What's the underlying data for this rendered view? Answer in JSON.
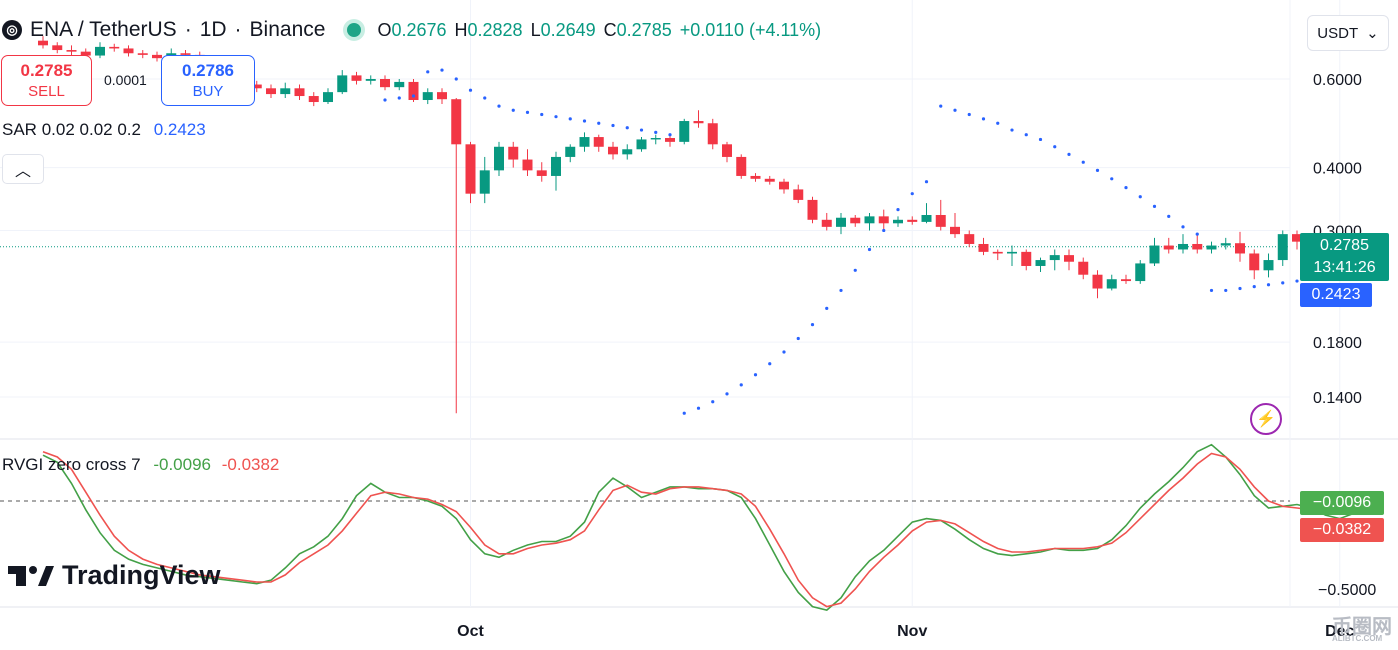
{
  "header": {
    "symbol_icon": "dollar-coin-icon",
    "pair": "ENA / TetherUS",
    "timeframe": "1D",
    "exchange": "Binance",
    "ohlc": {
      "o_label": "O",
      "o": "0.2676",
      "h_label": "H",
      "h": "0.2828",
      "l_label": "L",
      "l": "0.2649",
      "c_label": "C",
      "c": "0.2785",
      "change": "+0.0110 (+4.11%)"
    }
  },
  "trade": {
    "sell_price": "0.2785",
    "sell_label": "SELL",
    "spread": "0.0001",
    "buy_price": "0.2786",
    "buy_label": "BUY"
  },
  "sar_legend": {
    "name": "SAR",
    "params": "0.02 0.02 0.2",
    "value": "0.2423"
  },
  "currency": {
    "label": "USDT",
    "icon": "chevron-down-icon"
  },
  "indicator_legend": {
    "name": "RVGI zero cross",
    "length": "7",
    "value_a": "-0.0096",
    "value_b": "-0.0382"
  },
  "badges": {
    "price": "0.2785",
    "countdown": "13:41:26",
    "sar": "0.2423",
    "rvgi_a": "−0.0096",
    "rvgi_b": "−0.0382"
  },
  "brand": "TradingView",
  "watermark": "币圈网",
  "watermark_sub": "ALIBTC.COM",
  "colors": {
    "up": "#089981",
    "down": "#f23645",
    "sar": "#2962ff",
    "rvgi_a": "#43a047",
    "rvgi_b": "#ef5350",
    "countdown_bg": "#089981"
  },
  "chart_data": [
    {
      "type": "candlestick",
      "price_axis": {
        "scale": "log",
        "ticks": [
          "0.6000",
          "0.4000",
          "0.3000",
          "0.1800",
          "0.1400"
        ],
        "tick_values": [
          0.6,
          0.4,
          0.3,
          0.18,
          0.14
        ]
      },
      "time_axis": {
        "labels": [
          "Oct",
          "Nov",
          "Dec"
        ],
        "label_dates": [
          "2024-10-01",
          "2024-11-01",
          "2024-12-01"
        ]
      },
      "first_date": "2024-09-01",
      "candles": [
        [
          0.715,
          0.7,
          0.73,
          0.69
        ],
        [
          0.7,
          0.685,
          0.71,
          0.675
        ],
        [
          0.685,
          0.68,
          0.7,
          0.665
        ],
        [
          0.68,
          0.668,
          0.69,
          0.655
        ],
        [
          0.668,
          0.695,
          0.71,
          0.66
        ],
        [
          0.695,
          0.69,
          0.705,
          0.68
        ],
        [
          0.69,
          0.675,
          0.7,
          0.665
        ],
        [
          0.675,
          0.67,
          0.685,
          0.66
        ],
        [
          0.67,
          0.66,
          0.68,
          0.65
        ],
        [
          0.66,
          0.675,
          0.69,
          0.655
        ],
        [
          0.675,
          0.67,
          0.685,
          0.66
        ],
        [
          0.67,
          0.655,
          0.68,
          0.645
        ],
        [
          0.655,
          0.62,
          0.66,
          0.61
        ],
        [
          0.62,
          0.6,
          0.625,
          0.59
        ],
        [
          0.6,
          0.585,
          0.61,
          0.575
        ],
        [
          0.585,
          0.575,
          0.595,
          0.565
        ],
        [
          0.575,
          0.56,
          0.585,
          0.55
        ],
        [
          0.56,
          0.575,
          0.59,
          0.55
        ],
        [
          0.575,
          0.555,
          0.585,
          0.545
        ],
        [
          0.555,
          0.54,
          0.565,
          0.53
        ],
        [
          0.54,
          0.565,
          0.575,
          0.535
        ],
        [
          0.565,
          0.61,
          0.625,
          0.56
        ],
        [
          0.61,
          0.595,
          0.62,
          0.585
        ],
        [
          0.595,
          0.6,
          0.61,
          0.585
        ],
        [
          0.6,
          0.578,
          0.61,
          0.57
        ],
        [
          0.578,
          0.592,
          0.6,
          0.57
        ],
        [
          0.592,
          0.545,
          0.6,
          0.54
        ],
        [
          0.545,
          0.565,
          0.575,
          0.535
        ],
        [
          0.565,
          0.547,
          0.575,
          0.535
        ],
        [
          0.547,
          0.445,
          0.55,
          0.13
        ],
        [
          0.445,
          0.355,
          0.45,
          0.34
        ],
        [
          0.355,
          0.395,
          0.42,
          0.34
        ],
        [
          0.395,
          0.44,
          0.45,
          0.385
        ],
        [
          0.44,
          0.415,
          0.45,
          0.4
        ],
        [
          0.415,
          0.395,
          0.435,
          0.385
        ],
        [
          0.395,
          0.385,
          0.41,
          0.375
        ],
        [
          0.385,
          0.42,
          0.43,
          0.36
        ],
        [
          0.42,
          0.44,
          0.445,
          0.41
        ],
        [
          0.44,
          0.46,
          0.47,
          0.43
        ],
        [
          0.46,
          0.44,
          0.465,
          0.43
        ],
        [
          0.44,
          0.425,
          0.45,
          0.415
        ],
        [
          0.425,
          0.435,
          0.445,
          0.415
        ],
        [
          0.435,
          0.455,
          0.46,
          0.43
        ],
        [
          0.455,
          0.458,
          0.465,
          0.445
        ],
        [
          0.458,
          0.45,
          0.465,
          0.44
        ],
        [
          0.45,
          0.495,
          0.5,
          0.445
        ],
        [
          0.495,
          0.49,
          0.52,
          0.48
        ],
        [
          0.49,
          0.445,
          0.5,
          0.435
        ],
        [
          0.445,
          0.42,
          0.45,
          0.41
        ],
        [
          0.42,
          0.385,
          0.425,
          0.38
        ],
        [
          0.385,
          0.38,
          0.39,
          0.375
        ],
        [
          0.38,
          0.375,
          0.385,
          0.37
        ],
        [
          0.375,
          0.362,
          0.38,
          0.355
        ],
        [
          0.362,
          0.345,
          0.37,
          0.34
        ],
        [
          0.345,
          0.315,
          0.35,
          0.31
        ],
        [
          0.315,
          0.305,
          0.325,
          0.3
        ],
        [
          0.305,
          0.318,
          0.325,
          0.295
        ],
        [
          0.318,
          0.31,
          0.322,
          0.305
        ],
        [
          0.31,
          0.32,
          0.325,
          0.3
        ],
        [
          0.32,
          0.31,
          0.33,
          0.3
        ],
        [
          0.31,
          0.315,
          0.32,
          0.305
        ],
        [
          0.315,
          0.312,
          0.32,
          0.308
        ],
        [
          0.312,
          0.322,
          0.34,
          0.31
        ],
        [
          0.322,
          0.305,
          0.345,
          0.3
        ],
        [
          0.305,
          0.295,
          0.325,
          0.29
        ],
        [
          0.295,
          0.282,
          0.3,
          0.278
        ],
        [
          0.282,
          0.272,
          0.29,
          0.268
        ],
        [
          0.272,
          0.27,
          0.275,
          0.262
        ],
        [
          0.27,
          0.272,
          0.28,
          0.255
        ],
        [
          0.272,
          0.255,
          0.275,
          0.25
        ],
        [
          0.255,
          0.262,
          0.265,
          0.248
        ],
        [
          0.262,
          0.268,
          0.275,
          0.25
        ],
        [
          0.268,
          0.26,
          0.275,
          0.25
        ],
        [
          0.26,
          0.245,
          0.265,
          0.24
        ],
        [
          0.245,
          0.23,
          0.25,
          0.22
        ],
        [
          0.23,
          0.24,
          0.245,
          0.228
        ],
        [
          0.24,
          0.238,
          0.245,
          0.235
        ],
        [
          0.238,
          0.258,
          0.262,
          0.235
        ],
        [
          0.258,
          0.28,
          0.29,
          0.255
        ],
        [
          0.28,
          0.275,
          0.29,
          0.27
        ],
        [
          0.275,
          0.282,
          0.295,
          0.27
        ],
        [
          0.282,
          0.275,
          0.295,
          0.27
        ],
        [
          0.275,
          0.28,
          0.285,
          0.27
        ],
        [
          0.28,
          0.283,
          0.29,
          0.275
        ],
        [
          0.283,
          0.27,
          0.298,
          0.26
        ],
        [
          0.27,
          0.25,
          0.275,
          0.24
        ],
        [
          0.25,
          0.262,
          0.27,
          0.242
        ],
        [
          0.262,
          0.295,
          0.3,
          0.255
        ],
        [
          0.295,
          0.285,
          0.3,
          0.275
        ],
        [
          0.285,
          0.262,
          0.29,
          0.255
        ],
        [
          0.262,
          0.258,
          0.27,
          0.25
        ],
        [
          0.258,
          0.265,
          0.268,
          0.252
        ],
        [
          0.265,
          0.2676,
          0.285,
          0.255
        ],
        [
          0.2676,
          0.2785,
          0.2828,
          0.2649
        ]
      ],
      "candle_fields": [
        "open",
        "close",
        "high",
        "low"
      ],
      "current_price": 0.2785,
      "parabolic_sar": [
        null,
        null,
        null,
        null,
        null,
        null,
        null,
        null,
        null,
        null,
        null,
        null,
        null,
        null,
        null,
        null,
        null,
        null,
        null,
        null,
        null,
        null,
        null,
        null,
        0.545,
        0.55,
        0.555,
        0.62,
        0.625,
        0.6,
        0.57,
        0.55,
        0.53,
        0.52,
        0.515,
        0.51,
        0.505,
        0.5,
        0.495,
        0.49,
        0.485,
        0.48,
        0.475,
        0.47,
        0.465,
        0.13,
        0.133,
        0.137,
        0.142,
        0.148,
        0.155,
        0.163,
        0.172,
        0.183,
        0.195,
        0.21,
        0.228,
        0.25,
        0.275,
        0.3,
        0.33,
        0.355,
        0.375,
        0.53,
        0.52,
        0.51,
        0.5,
        0.49,
        0.475,
        0.465,
        0.455,
        0.44,
        0.425,
        0.41,
        0.395,
        0.38,
        0.365,
        0.35,
        0.335,
        0.32,
        0.305,
        0.295,
        0.228,
        0.228,
        0.23,
        0.232,
        0.234,
        0.236,
        0.238,
        0.24,
        0.242,
        0.244,
        0.246,
        0.2423
      ]
    },
    {
      "type": "line",
      "name": "RVGI zero cross 7",
      "y_axis": {
        "ticks": [
          "−0.5000"
        ],
        "tick_values": [
          -0.5
        ],
        "zero_line": true
      },
      "series": [
        {
          "name": "-0.0096",
          "values": [
            0.26,
            0.22,
            0.1,
            -0.05,
            -0.18,
            -0.28,
            -0.33,
            -0.36,
            -0.38,
            -0.4,
            -0.42,
            -0.43,
            -0.44,
            -0.45,
            -0.46,
            -0.47,
            -0.45,
            -0.38,
            -0.3,
            -0.26,
            -0.2,
            -0.1,
            0.03,
            0.1,
            0.05,
            0.02,
            0.02,
            0.0,
            -0.03,
            -0.1,
            -0.22,
            -0.3,
            -0.32,
            -0.28,
            -0.25,
            -0.23,
            -0.23,
            -0.2,
            -0.12,
            0.05,
            0.13,
            0.08,
            0.02,
            0.05,
            0.08,
            0.08,
            0.07,
            0.07,
            0.06,
            0.02,
            -0.1,
            -0.25,
            -0.4,
            -0.52,
            -0.6,
            -0.62,
            -0.55,
            -0.43,
            -0.34,
            -0.28,
            -0.2,
            -0.12,
            -0.1,
            -0.11,
            -0.16,
            -0.22,
            -0.27,
            -0.3,
            -0.31,
            -0.3,
            -0.29,
            -0.27,
            -0.28,
            -0.28,
            -0.27,
            -0.22,
            -0.14,
            -0.04,
            0.04,
            0.11,
            0.19,
            0.28,
            0.32,
            0.25,
            0.15,
            0.03,
            -0.04,
            -0.03,
            -0.02,
            -0.04,
            -0.08,
            -0.1,
            -0.07,
            -0.0096
          ]
        },
        {
          "name": "-0.0382",
          "values": [
            0.28,
            0.25,
            0.18,
            0.05,
            -0.08,
            -0.2,
            -0.28,
            -0.33,
            -0.36,
            -0.38,
            -0.4,
            -0.42,
            -0.43,
            -0.44,
            -0.45,
            -0.46,
            -0.46,
            -0.42,
            -0.35,
            -0.3,
            -0.25,
            -0.17,
            -0.07,
            0.03,
            0.05,
            0.04,
            0.02,
            0.01,
            -0.02,
            -0.06,
            -0.15,
            -0.25,
            -0.3,
            -0.3,
            -0.27,
            -0.25,
            -0.24,
            -0.22,
            -0.17,
            -0.05,
            0.06,
            0.09,
            0.05,
            0.04,
            0.07,
            0.08,
            0.08,
            0.07,
            0.06,
            0.04,
            -0.03,
            -0.16,
            -0.3,
            -0.45,
            -0.55,
            -0.6,
            -0.58,
            -0.5,
            -0.4,
            -0.32,
            -0.25,
            -0.17,
            -0.12,
            -0.11,
            -0.13,
            -0.18,
            -0.23,
            -0.27,
            -0.29,
            -0.29,
            -0.28,
            -0.27,
            -0.27,
            -0.27,
            -0.26,
            -0.24,
            -0.18,
            -0.1,
            -0.02,
            0.06,
            0.13,
            0.21,
            0.27,
            0.25,
            0.18,
            0.08,
            0.0,
            -0.03,
            -0.04,
            -0.05,
            -0.06,
            -0.07,
            -0.06,
            -0.0382
          ]
        }
      ]
    }
  ]
}
